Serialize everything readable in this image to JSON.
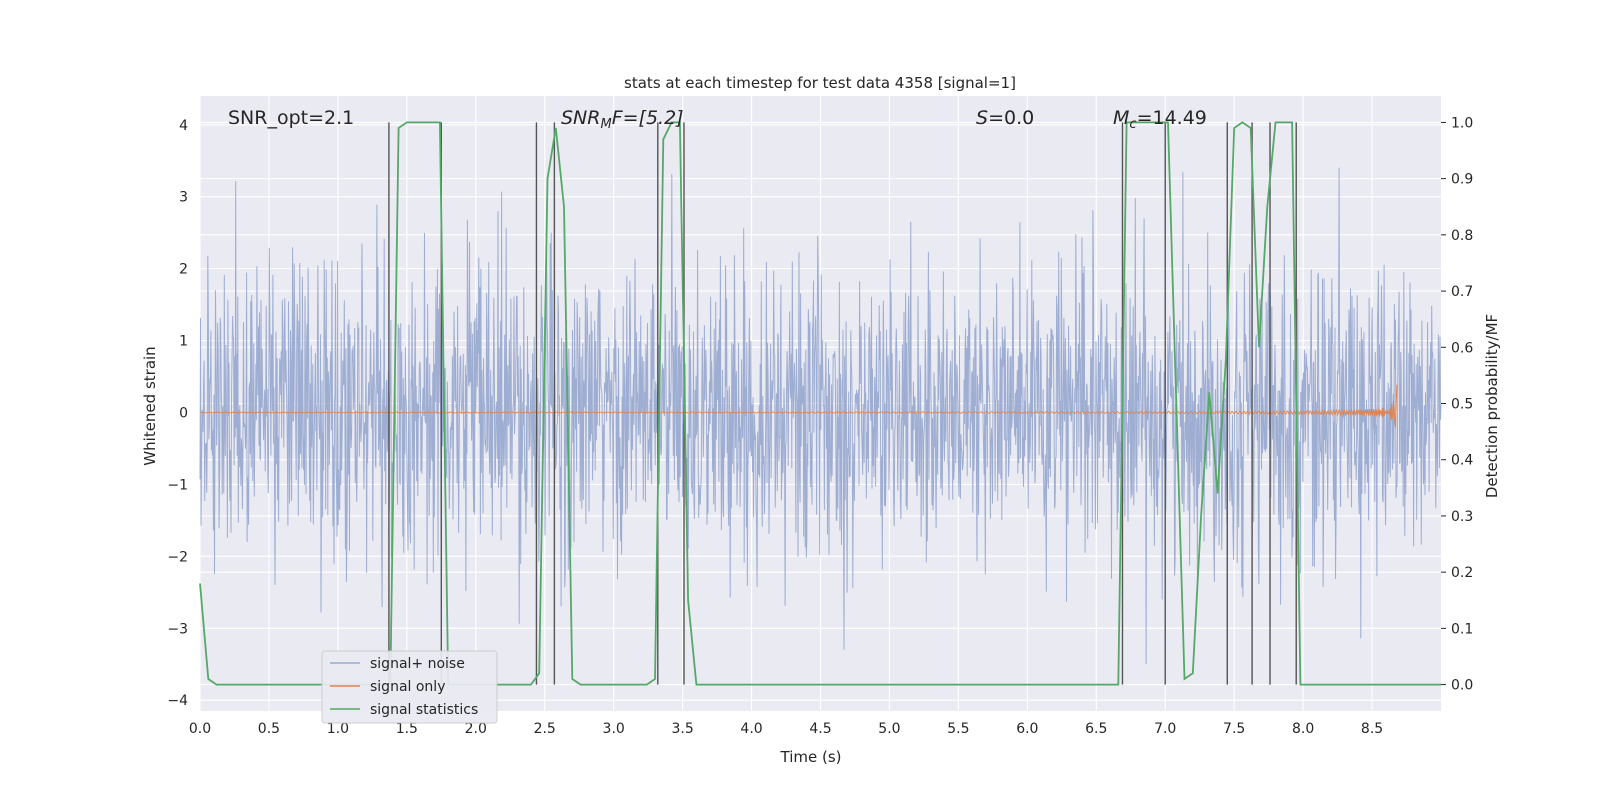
{
  "chart_data": {
    "type": "line",
    "title": "stats at each timestep for test data 4358 [signal=1]",
    "xlabel": "Time (s)",
    "ylabel_left": "Whitened strain",
    "ylabel_right": "Detection probability/MF",
    "xlim": [
      0.0,
      9.0
    ],
    "ylim_left": [
      -4.15,
      4.4
    ],
    "ylim_right": [
      -0.047,
      1.047
    ],
    "x_ticks": [
      "0.0",
      "0.5",
      "1.0",
      "1.5",
      "2.0",
      "2.5",
      "3.0",
      "3.5",
      "4.0",
      "4.5",
      "5.0",
      "5.5",
      "6.0",
      "6.5",
      "7.0",
      "7.5",
      "8.0",
      "8.5"
    ],
    "y_ticks_left": [
      "4",
      "3",
      "2",
      "1",
      "0",
      "−1",
      "−2",
      "−3",
      "−4"
    ],
    "y_ticks_right": [
      "1.0",
      "0.9",
      "0.8",
      "0.7",
      "0.6",
      "0.5",
      "0.4",
      "0.3",
      "0.2",
      "0.1",
      "0.0"
    ],
    "grid": true,
    "legend_position": "lower-left",
    "annotations": {
      "snr_opt": "SNR_opt=2.1",
      "snr_mf_main": "SNR",
      "snr_mf_sub": "M",
      "snr_mf_tail": "F=[5.2]",
      "s_main": "S",
      "s_tail": "=0.0",
      "mc_main": "M",
      "mc_sub": "c",
      "mc_tail": "=14.49"
    },
    "series": [
      {
        "name": "signal+ noise",
        "color": "#9aaad0",
        "description_values": "whitened noise, std approx 1, range approx -3.5 to 3.6"
      },
      {
        "name": "signal only",
        "color": "#dd8452",
        "chirp_end_time": 8.68,
        "chirp_end_amplitude": 0.4
      },
      {
        "name": "signal statistics",
        "color": "#55a868",
        "x": [
          0.0,
          0.06,
          0.12,
          0.18,
          0.24,
          0.3,
          0.36,
          0.42,
          0.48,
          0.54,
          0.6,
          0.66,
          0.72,
          0.78,
          0.84,
          0.9,
          0.96,
          1.02,
          1.08,
          1.14,
          1.2,
          1.26,
          1.32,
          1.38,
          1.44,
          1.5,
          1.56,
          1.62,
          1.68,
          1.74,
          1.8,
          1.86,
          1.92,
          1.98,
          2.04,
          2.1,
          2.16,
          2.22,
          2.28,
          2.34,
          2.4,
          2.46,
          2.52,
          2.58,
          2.64,
          2.7,
          2.76,
          2.82,
          2.88,
          2.94,
          3.0,
          3.06,
          3.12,
          3.18,
          3.24,
          3.3,
          3.36,
          3.42,
          3.48,
          3.54,
          3.6,
          3.66,
          6.6,
          6.66,
          6.72,
          6.78,
          6.84,
          6.9,
          6.96,
          7.02,
          7.08,
          7.14,
          7.2,
          7.26,
          7.32,
          7.38,
          7.44,
          7.5,
          7.56,
          7.62,
          7.68,
          7.74,
          7.8,
          7.86,
          7.92,
          7.98,
          8.04,
          8.1,
          8.16,
          8.22,
          8.28,
          8.34,
          8.4,
          8.46,
          8.52,
          8.58,
          8.64,
          8.7,
          8.76,
          8.82,
          8.88,
          8.94,
          9.0
        ],
        "y": [
          0.18,
          0.01,
          0.0,
          0.0,
          0.0,
          0.0,
          0.0,
          0.0,
          0.0,
          0.0,
          0.0,
          0.0,
          0.0,
          0.0,
          0.0,
          0.0,
          0.0,
          0.0,
          0.0,
          0.0,
          0.0,
          0.0,
          0.0,
          0.0,
          0.99,
          1.0,
          1.0,
          1.0,
          1.0,
          1.0,
          0.0,
          0.0,
          0.0,
          0.0,
          0.0,
          0.0,
          0.0,
          0.0,
          0.0,
          0.0,
          0.0,
          0.02,
          0.9,
          0.99,
          0.85,
          0.01,
          0.0,
          0.0,
          0.0,
          0.0,
          0.0,
          0.0,
          0.0,
          0.0,
          0.0,
          0.01,
          0.97,
          1.0,
          1.0,
          0.15,
          0.0,
          0.0,
          0.0,
          0.0,
          1.0,
          1.0,
          1.0,
          1.0,
          1.0,
          1.0,
          0.5,
          0.01,
          0.02,
          0.3,
          0.52,
          0.34,
          0.58,
          0.99,
          1.0,
          0.99,
          0.6,
          0.85,
          1.0,
          1.0,
          1.0,
          0.0,
          0.0,
          0.0,
          0.0,
          0.0,
          0.0,
          0.0,
          0.0,
          0.0,
          0.0,
          0.0,
          0.0,
          0.0,
          0.0,
          0.0,
          0.0,
          0.0,
          0.0
        ]
      }
    ],
    "vertical_lines_time": [
      1.37,
      1.75,
      2.44,
      2.57,
      3.32,
      3.51,
      6.69,
      7.0,
      7.45,
      7.63,
      7.76,
      7.95
    ]
  }
}
